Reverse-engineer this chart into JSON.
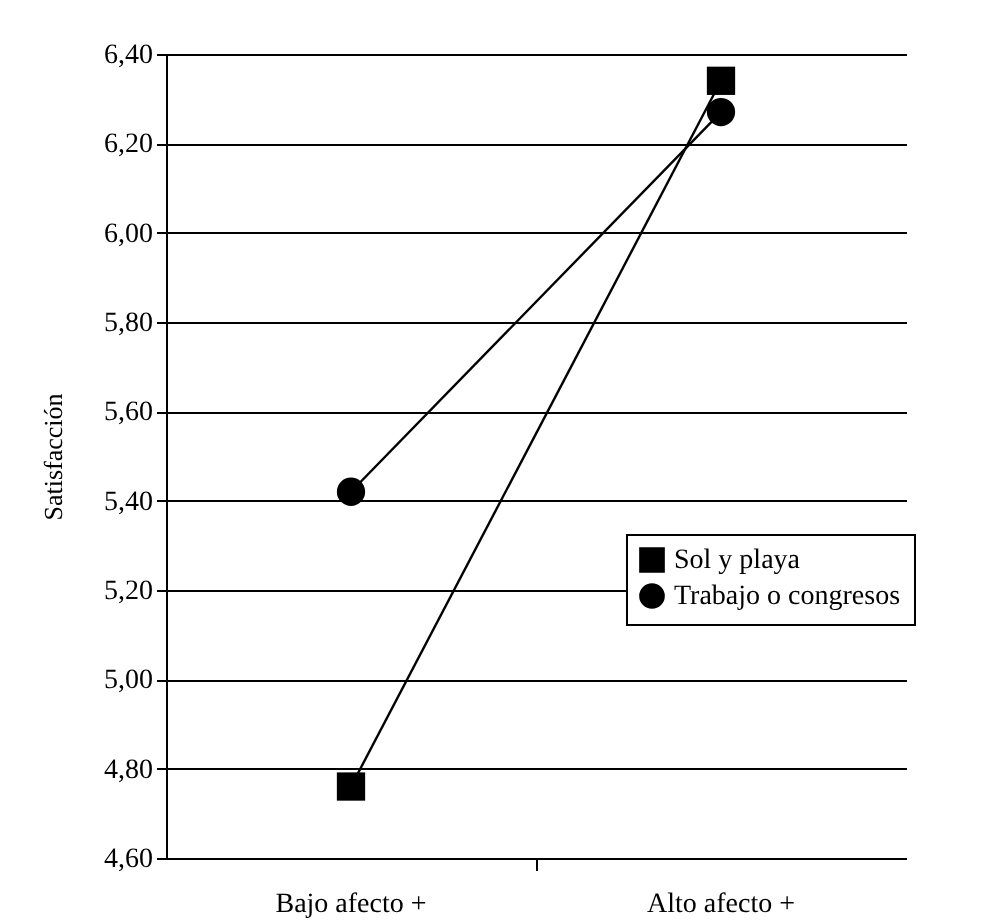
{
  "chart_data": {
    "type": "line",
    "ylabel": "Satisfacción",
    "categories": [
      "Bajo afecto +",
      "Alto afecto +"
    ],
    "series": [
      {
        "name": "Sol y playa",
        "color": "#000000",
        "marker": "square",
        "values": [
          4.76,
          6.34
        ]
      },
      {
        "name": "Trabajo o congresos",
        "color": "#000000",
        "marker": "circle",
        "values": [
          5.42,
          6.27
        ]
      }
    ],
    "ylim": [
      4.6,
      6.4
    ],
    "yticks": [
      {
        "value": 4.6,
        "label": "4,60"
      },
      {
        "value": 4.8,
        "label": "4,80"
      },
      {
        "value": 5.0,
        "label": "5,00"
      },
      {
        "value": 5.2,
        "label": "5,20"
      },
      {
        "value": 5.4,
        "label": "5,40"
      },
      {
        "value": 5.6,
        "label": "5,60"
      },
      {
        "value": 5.8,
        "label": "5,80"
      },
      {
        "value": 6.0,
        "label": "6,00"
      },
      {
        "value": 6.2,
        "label": "6,20"
      },
      {
        "value": 6.4,
        "label": "6,40"
      }
    ],
    "grid": "y",
    "legend": "right"
  }
}
